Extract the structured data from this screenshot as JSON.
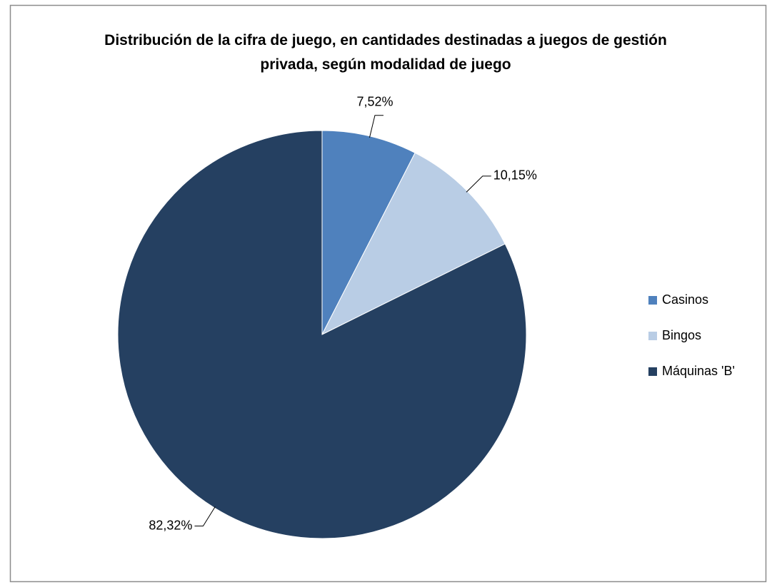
{
  "chart_data": {
    "type": "pie",
    "title": "Distribución de la cifra de juego, en cantidades destinadas a juegos de gestión privada, según modalidad de juego",
    "categories": [
      "Casinos",
      "Bingos",
      "Máquinas 'B'"
    ],
    "values": [
      7.52,
      10.15,
      82.32
    ],
    "value_labels": [
      "7,52%",
      "10,15%",
      "82,32%"
    ],
    "colors": [
      "#4f81bd",
      "#b9cde5",
      "#254061"
    ],
    "legend": "right"
  }
}
